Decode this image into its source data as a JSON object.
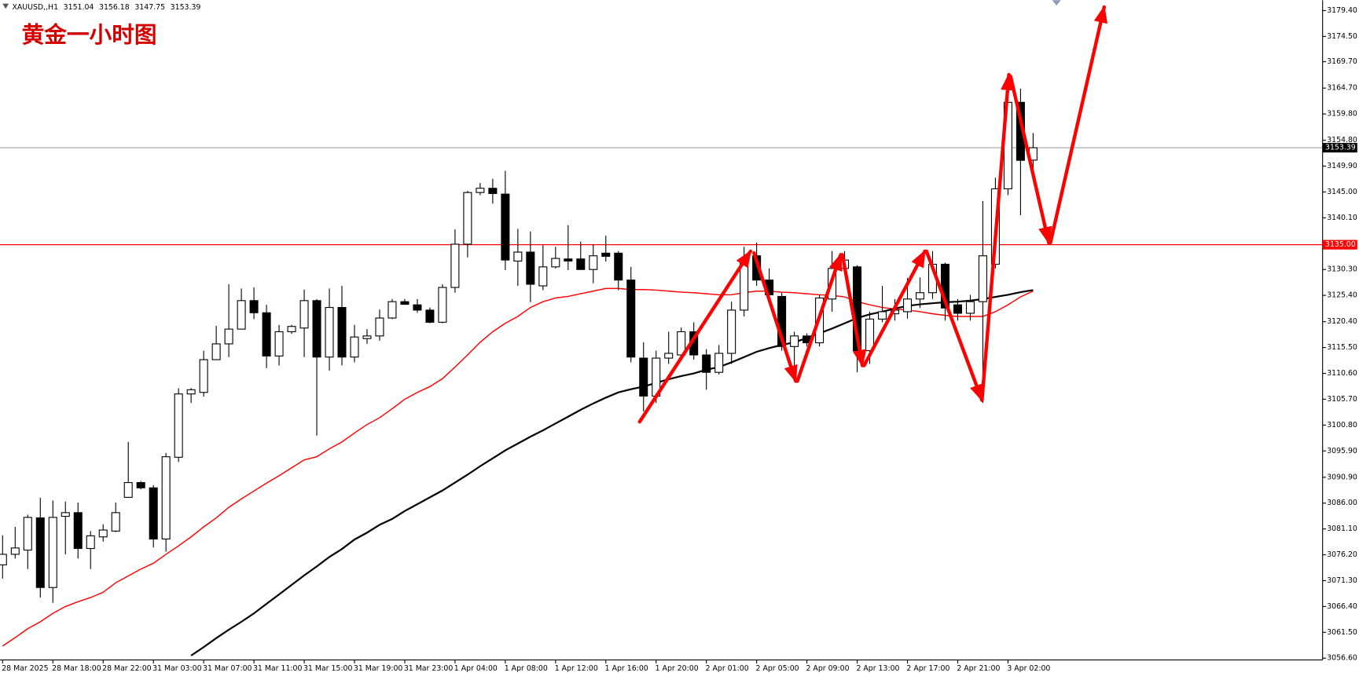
{
  "chart_data": {
    "type": "candlestick",
    "symbol": "XAUUSD,,H1",
    "annotation": "黄金一小时图",
    "categories": [
      "28 Mar 2025",
      null,
      null,
      null,
      "28 Mar 18:00",
      null,
      null,
      null,
      "28 Mar 22:00",
      null,
      null,
      null,
      "31 Mar 03:00",
      null,
      null,
      null,
      "31 Mar 07:00",
      null,
      null,
      null,
      "31 Mar 11:00",
      null,
      null,
      null,
      "31 Mar 15:00",
      null,
      null,
      null,
      "31 Mar 19:00",
      null,
      null,
      null,
      "31 Mar 23:00",
      null,
      null,
      null,
      "1 Apr 04:00",
      null,
      null,
      null,
      "1 Apr 08:00",
      null,
      null,
      null,
      "1 Apr 12:00",
      null,
      null,
      null,
      "1 Apr 16:00",
      null,
      null,
      null,
      "1 Apr 20:00",
      null,
      null,
      null,
      "2 Apr 01:00",
      null,
      null,
      null,
      "2 Apr 05:00",
      null,
      null,
      null,
      "2 Apr 09:00",
      null,
      null,
      null,
      "2 Apr 13:00",
      null,
      null,
      null,
      "2 Apr 17:00",
      null,
      null,
      null,
      "2 Apr 21:00",
      null,
      null,
      null,
      "3 Apr 02:00",
      null,
      null
    ],
    "open": [
      3074.3,
      3076.3,
      3077.1,
      3083.2,
      3070.0,
      3083.5,
      3084.2,
      3077.4,
      3079.6,
      3080.7,
      3087.1,
      3089.9,
      3088.9,
      3079.2,
      3094.7,
      3106.7,
      3107.0,
      3113.2,
      3116.2,
      3119.0,
      3124.4,
      3122.1,
      3113.9,
      3118.5,
      3119.2,
      3124.4,
      3113.7,
      3123.1,
      3113.7,
      3117.2,
      3117.7,
      3121.1,
      3124.2,
      3123.6,
      3122.6,
      3120.3,
      3126.9,
      3135.1,
      3144.9,
      3145.7,
      3144.6,
      3131.9,
      3133.6,
      3127.2,
      3130.8,
      3132.3,
      3132.3,
      3130.3,
      3133.4,
      3133.4,
      3128.3,
      3113.5,
      3106.3,
      3113.5,
      3114.1,
      3118.5,
      3114.1,
      3110.8,
      3114.4,
      3122.6,
      3132.9,
      3128.3,
      3125.2,
      3115.7,
      3117.7,
      3116.4,
      3124.7,
      3130.5,
      3130.8,
      3114.9,
      3120.9,
      3121.9,
      3122.3,
      3124.7,
      3125.9,
      3131.3,
      3123.6,
      3122.0,
      3124.2,
      3131.3,
      3145.6,
      3162.0,
      3151.04
    ],
    "high": [
      3079.9,
      3081.5,
      3083.8,
      3087.0,
      3086.5,
      3086.3,
      3086.1,
      3080.7,
      3082.0,
      3086.1,
      3097.6,
      3090.2,
      3089.4,
      3095.5,
      3107.8,
      3107.8,
      3114.9,
      3119.6,
      3127.5,
      3126.7,
      3126.9,
      3123.6,
      3119.8,
      3119.8,
      3126.5,
      3124.7,
      3126.7,
      3127.2,
      3119.8,
      3119.0,
      3122.7,
      3124.7,
      3124.7,
      3124.7,
      3123.1,
      3127.5,
      3137.9,
      3145.2,
      3146.7,
      3147.5,
      3149.0,
      3138.0,
      3137.5,
      3134.9,
      3134.6,
      3138.7,
      3135.6,
      3135.1,
      3136.7,
      3133.8,
      3130.8,
      3116.5,
      3114.9,
      3118.5,
      3119.3,
      3120.3,
      3115.2,
      3116.0,
      3124.2,
      3134.6,
      3135.4,
      3130.5,
      3125.9,
      3118.5,
      3118.2,
      3125.5,
      3133.8,
      3133.8,
      3131.1,
      3122.3,
      3127.2,
      3124.7,
      3128.7,
      3128.8,
      3133.8,
      3131.6,
      3124.7,
      3125.5,
      3143.3,
      3147.7,
      3163.3,
      3164.6,
      3156.18
    ],
    "low": [
      3071.7,
      3075.5,
      3073.5,
      3068.1,
      3067.1,
      3076.3,
      3075.5,
      3073.5,
      3078.7,
      3080.5,
      3087.0,
      3088.6,
      3077.6,
      3076.8,
      3093.8,
      3105.0,
      3106.2,
      3113.2,
      3113.7,
      3119.0,
      3120.9,
      3111.6,
      3112.1,
      3118.1,
      3113.7,
      3098.8,
      3111.1,
      3112.1,
      3112.7,
      3116.2,
      3116.8,
      3120.9,
      3123.6,
      3122.1,
      3120.1,
      3120.1,
      3125.9,
      3132.6,
      3144.4,
      3142.8,
      3130.2,
      3127.2,
      3124.1,
      3126.4,
      3130.5,
      3130.2,
      3130.2,
      3127.7,
      3131.8,
      3126.4,
      3112.7,
      3103.4,
      3105.0,
      3112.4,
      3113.7,
      3113.2,
      3107.5,
      3110.4,
      3112.4,
      3121.4,
      3127.2,
      3123.9,
      3114.9,
      3111.1,
      3115.7,
      3115.7,
      3122.3,
      3129.7,
      3110.8,
      3112.4,
      3120.3,
      3120.6,
      3121.0,
      3123.0,
      3124.7,
      3120.6,
      3120.6,
      3120.6,
      3105.0,
      3130.5,
      3144.4,
      3140.6,
      3147.75
    ],
    "close": [
      3076.3,
      3077.5,
      3083.3,
      3070.0,
      3083.3,
      3084.2,
      3077.4,
      3079.8,
      3080.9,
      3084.2,
      3089.9,
      3088.9,
      3079.2,
      3094.8,
      3106.7,
      3107.5,
      3113.2,
      3116.2,
      3119.0,
      3124.4,
      3122.1,
      3113.9,
      3118.5,
      3119.5,
      3124.4,
      3113.7,
      3123.1,
      3113.7,
      3117.5,
      3117.7,
      3121.1,
      3124.2,
      3123.7,
      3122.6,
      3120.3,
      3126.9,
      3135.1,
      3144.9,
      3145.7,
      3144.7,
      3132.1,
      3133.6,
      3127.5,
      3130.8,
      3132.4,
      3131.9,
      3130.3,
      3132.9,
      3132.8,
      3128.3,
      3113.7,
      3106.3,
      3113.5,
      3114.4,
      3118.5,
      3114.1,
      3110.8,
      3114.4,
      3122.6,
      3132.1,
      3128.3,
      3125.5,
      3115.7,
      3117.7,
      3116.4,
      3124.9,
      3130.5,
      3132.1,
      3114.9,
      3120.9,
      3122.3,
      3122.6,
      3124.7,
      3125.9,
      3131.3,
      3123.0,
      3122.0,
      3124.2,
      3132.9,
      3145.6,
      3162.0,
      3151.0,
      3153.39
    ],
    "up_color": "#ffffff",
    "down_color": "#000000",
    "lines": [
      {
        "color": "#ff0000",
        "values": [
          3058.9,
          3060.5,
          3062.2,
          3063.5,
          3065.1,
          3066.4,
          3067.3,
          3068.1,
          3069.1,
          3070.9,
          3072.2,
          3073.5,
          3074.6,
          3076.3,
          3077.9,
          3079.6,
          3081.5,
          3083.2,
          3085.2,
          3086.8,
          3088.3,
          3089.8,
          3091.2,
          3092.7,
          3094.2,
          3094.8,
          3096.3,
          3097.6,
          3099.3,
          3100.9,
          3102.2,
          3103.9,
          3105.7,
          3107.0,
          3108.1,
          3109.6,
          3111.8,
          3114.1,
          3116.5,
          3118.5,
          3120.1,
          3121.4,
          3123.1,
          3124.2,
          3124.9,
          3125.2,
          3125.7,
          3126.2,
          3126.7,
          3126.7,
          3126.5,
          3126.5,
          3126.4,
          3126.2,
          3126.0,
          3125.9,
          3125.7,
          3125.5,
          3125.5,
          3125.9,
          3126.2,
          3126.2,
          3126.0,
          3125.9,
          3125.7,
          3125.5,
          3125.4,
          3125.1,
          3124.2,
          3123.6,
          3123.1,
          3122.8,
          3122.6,
          3122.3,
          3121.9,
          3121.6,
          3121.4,
          3121.4,
          3121.4,
          3122.3,
          3123.6,
          3125.1,
          3126.2
        ]
      },
      {
        "color": "#000000",
        "values": [
          null,
          null,
          null,
          null,
          null,
          null,
          null,
          null,
          null,
          null,
          null,
          null,
          null,
          null,
          null,
          3057.1,
          3058.7,
          3060.4,
          3062.0,
          3063.5,
          3065.1,
          3066.9,
          3068.7,
          3070.5,
          3072.3,
          3074.0,
          3075.8,
          3077.3,
          3079.1,
          3080.4,
          3081.9,
          3083.0,
          3084.5,
          3085.8,
          3087.1,
          3088.4,
          3089.9,
          3091.4,
          3093.0,
          3094.5,
          3096.0,
          3097.3,
          3098.6,
          3099.8,
          3101.1,
          3102.4,
          3103.7,
          3104.9,
          3106.0,
          3107.0,
          3107.6,
          3108.1,
          3108.8,
          3109.5,
          3110.1,
          3110.6,
          3111.3,
          3111.8,
          3112.7,
          3113.7,
          3114.7,
          3115.4,
          3116.0,
          3116.5,
          3117.3,
          3118.2,
          3119.1,
          3120.1,
          3121.1,
          3121.8,
          3122.3,
          3122.9,
          3123.4,
          3123.7,
          3123.9,
          3124.1,
          3124.2,
          3124.4,
          3124.7,
          3125.1,
          3125.5,
          3126.0,
          3126.4
        ]
      }
    ],
    "levels": [
      {
        "value": 3135,
        "label": "3135.00",
        "color": "#ff0000"
      }
    ],
    "ylim": [
      3056.27,
      3181.37
    ],
    "yticks": [
      {
        "value": 3179.4,
        "label": "3179.40"
      },
      {
        "value": 3174.5,
        "label": "3174.50"
      },
      {
        "value": 3169.7,
        "label": "3169.70"
      },
      {
        "value": 3164.7,
        "label": "3164.70"
      },
      {
        "value": 3159.8,
        "label": "3159.80"
      },
      {
        "value": 3154.8,
        "label": "3154.80"
      },
      {
        "value": 3149.9,
        "label": "3149.90"
      },
      {
        "value": 3145,
        "label": "3145.00"
      },
      {
        "value": 3140.1,
        "label": "3140.10"
      },
      {
        "value": 3130.3,
        "label": "3130.30"
      },
      {
        "value": 3125.4,
        "label": "3125.40"
      },
      {
        "value": 3120.4,
        "label": "3120.40"
      },
      {
        "value": 3115.5,
        "label": "3115.50"
      },
      {
        "value": 3110.6,
        "label": "3110.60"
      },
      {
        "value": 3105.7,
        "label": "3105.70"
      },
      {
        "value": 3100.8,
        "label": "3100.80"
      },
      {
        "value": 3095.9,
        "label": "3095.90"
      },
      {
        "value": 3090.9,
        "label": "3090.90"
      },
      {
        "value": 3086,
        "label": "3086.00"
      },
      {
        "value": 3081.1,
        "label": "3081.10"
      },
      {
        "value": 3076.2,
        "label": "3076.20"
      },
      {
        "value": 3071.3,
        "label": "3071.30"
      },
      {
        "value": 3066.4,
        "label": "3066.40"
      },
      {
        "value": 3061.5,
        "label": "3061.50"
      },
      {
        "value": 3056.6,
        "label": "3056.60"
      }
    ]
  }
}
